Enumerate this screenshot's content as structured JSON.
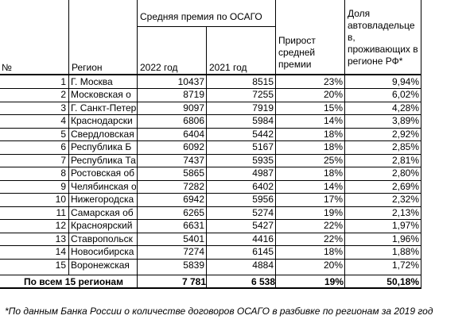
{
  "header": {
    "num": "№",
    "region": "Регион",
    "avg_premium": "Средняя премия по ОСАГО",
    "year_2022": "2022 год",
    "year_2021": "2021 год",
    "growth": "Прирост средней премии",
    "share": "Доля автовладельце в, проживающих в регионе РФ*"
  },
  "rows": [
    {
      "n": "1",
      "region": "Г. Москва",
      "y2022": "10437",
      "y2021": "8515",
      "growth": "23%",
      "share": "9,94%"
    },
    {
      "n": "2",
      "region": "Московская о",
      "y2022": "8719",
      "y2021": "7255",
      "growth": "20%",
      "share": "6,02%"
    },
    {
      "n": "3",
      "region": "Г. Санкт-Петер",
      "y2022": "9097",
      "y2021": "7919",
      "growth": "15%",
      "share": "4,28%"
    },
    {
      "n": "4",
      "region": "Краснодарски",
      "y2022": "6806",
      "y2021": "5984",
      "growth": "14%",
      "share": "3,89%"
    },
    {
      "n": "5",
      "region": "Свердловская",
      "y2022": "6404",
      "y2021": "5442",
      "growth": "18%",
      "share": "2,92%"
    },
    {
      "n": "6",
      "region": "Республика Б",
      "y2022": "6092",
      "y2021": "5167",
      "growth": "18%",
      "share": "2,85%"
    },
    {
      "n": "7",
      "region": "Республика Та",
      "y2022": "7437",
      "y2021": "5935",
      "growth": "25%",
      "share": "2,81%"
    },
    {
      "n": "8",
      "region": "Ростовская об",
      "y2022": "5865",
      "y2021": "4987",
      "growth": "18%",
      "share": "2,80%"
    },
    {
      "n": "9",
      "region": "Челябинская о",
      "y2022": "7282",
      "y2021": "6402",
      "growth": "14%",
      "share": "2,69%"
    },
    {
      "n": "10",
      "region": "Нижегородска",
      "y2022": "6942",
      "y2021": "5956",
      "growth": "17%",
      "share": "2,32%"
    },
    {
      "n": "11",
      "region": "Самарская об",
      "y2022": "6265",
      "y2021": "5274",
      "growth": "19%",
      "share": "2,13%"
    },
    {
      "n": "12",
      "region": "Красноярский",
      "y2022": "6631",
      "y2021": "5427",
      "growth": "22%",
      "share": "1,97%"
    },
    {
      "n": "13",
      "region": "Ставропольск",
      "y2022": "5401",
      "y2021": "4416",
      "growth": "22%",
      "share": "1,96%"
    },
    {
      "n": "14",
      "region": "Новосибирска",
      "y2022": "7274",
      "y2021": "6145",
      "growth": "18%",
      "share": "1,88%"
    },
    {
      "n": "15",
      "region": "Воронежская",
      "y2022": "5839",
      "y2021": "4884",
      "growth": "20%",
      "share": "1,72%"
    }
  ],
  "total": {
    "label": "По всем 15 регионам",
    "y2022": "7 781",
    "y2021": "6 538",
    "growth": "19%",
    "share": "50,18%"
  },
  "footnote": "*По данным Банка России о количестве договоров ОСАГО в разбивке по регионам за 2019 год"
}
